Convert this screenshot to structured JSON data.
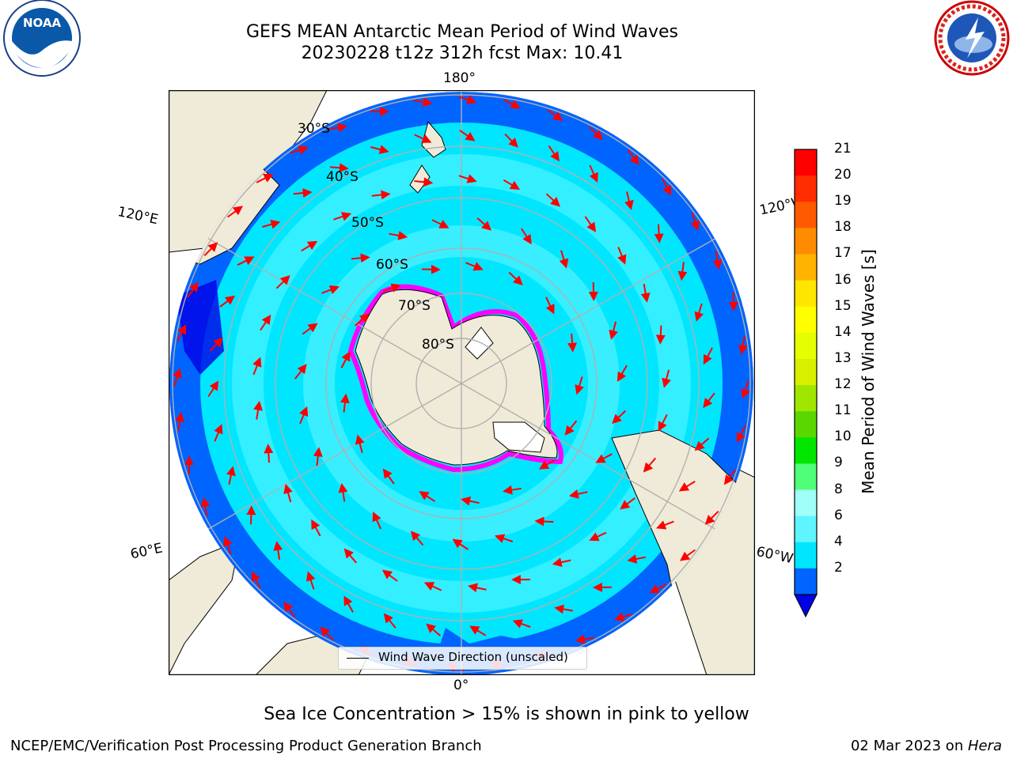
{
  "header": {
    "title_line1": "GEFS MEAN Antarctic Mean Period of Wind Waves",
    "title_line2": "20230228 t12z 312h fcst   Max: 10.41"
  },
  "logos": {
    "left_logo": "noara-logo",
    "left_logo_text": "NOAA",
    "right_logo": "nws-logo"
  },
  "map": {
    "longitude_labels": {
      "top": "180°",
      "bottom": "0°",
      "upper_left": "120°E",
      "upper_right": "120°W",
      "lower_left": "60°E",
      "lower_right": "60°W"
    },
    "latitude_labels": [
      "30°S",
      "40°S",
      "50°S",
      "60°S",
      "70°S",
      "80°S"
    ],
    "legend_label": "Wind Wave Direction (unscaled)",
    "colors": {
      "land": "#efebd8",
      "ocean_low": "#0064ff",
      "ocean_mid": "#00e6ff",
      "ocean_light": "#5ff5ff",
      "arrow": "#ff0000",
      "ice": "#ff00ff",
      "grid": "#b0b0b0"
    }
  },
  "colorbar": {
    "title": "Mean Period of Wind Waves [s]",
    "ticks": [
      "21",
      "20",
      "19",
      "18",
      "17",
      "16",
      "15",
      "14",
      "13",
      "12",
      "11",
      "10",
      "9",
      "8",
      "6",
      "4",
      "2"
    ],
    "colors": [
      "#0000e6",
      "#0064ff",
      "#00e6ff",
      "#5ff5ff",
      "#a0fff8",
      "#50ff78",
      "#00e600",
      "#5ad700",
      "#a0e600",
      "#d7f000",
      "#e6ff00",
      "#ffff00",
      "#ffe600",
      "#ffb400",
      "#ff8c00",
      "#ff5a00",
      "#ff2d00",
      "#ff0000"
    ]
  },
  "footer": {
    "note": "Sea Ice Concentration > 15% is shown in pink to yellow",
    "left": "NCEP/EMC/Verification Post Processing Product Generation Branch",
    "right_date": "02 Mar 2023 on ",
    "right_machine": "Hera"
  }
}
